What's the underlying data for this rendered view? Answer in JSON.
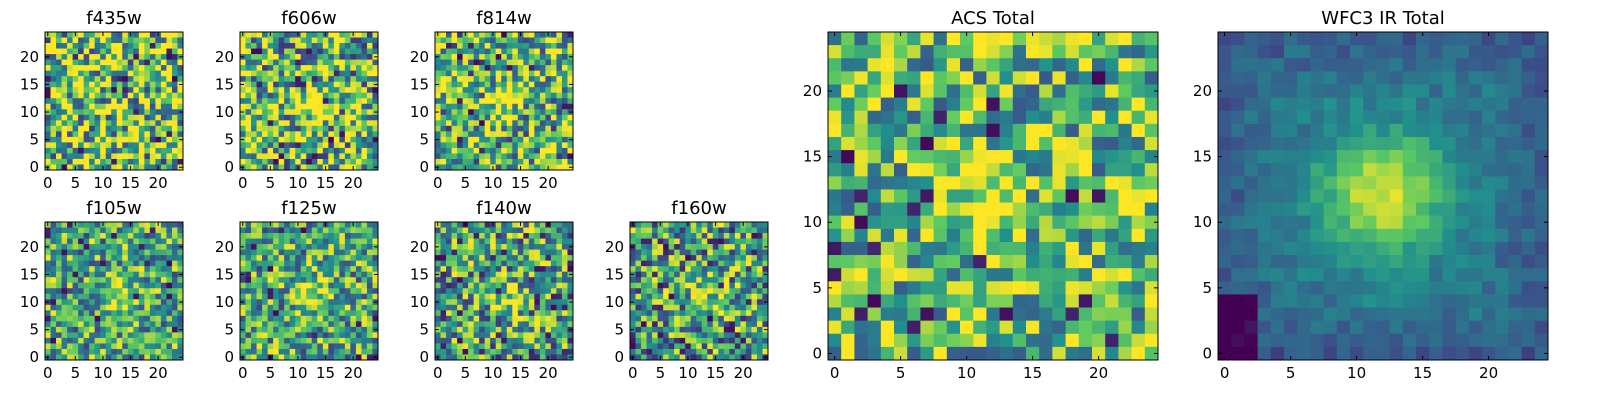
{
  "figure": {
    "colormap": "viridis",
    "colormap_stops": [
      "#440154",
      "#3b528b",
      "#21908d",
      "#5dc962",
      "#fde725"
    ]
  },
  "chart_data": [
    {
      "type": "heatmap",
      "title": "f435w",
      "grid": "25x25",
      "xlim": [
        0,
        24
      ],
      "ylim": [
        0,
        24
      ],
      "xticks": [
        "0",
        "5",
        "10",
        "15",
        "20"
      ],
      "yticks": [
        "0",
        "5",
        "10",
        "15",
        "20"
      ],
      "source_peak": null,
      "noise": 0.55,
      "baseline": 0.72
    },
    {
      "type": "heatmap",
      "title": "f606w",
      "grid": "25x25",
      "xlim": [
        0,
        24
      ],
      "ylim": [
        0,
        24
      ],
      "xticks": [
        "0",
        "5",
        "10",
        "15",
        "20"
      ],
      "yticks": [
        "0",
        "5",
        "10",
        "15",
        "20"
      ],
      "source_peak": [
        13,
        11
      ],
      "noise": 0.5,
      "baseline": 0.66
    },
    {
      "type": "heatmap",
      "title": "f814w",
      "grid": "25x25",
      "xlim": [
        0,
        24
      ],
      "ylim": [
        0,
        24
      ],
      "xticks": [
        "0",
        "5",
        "10",
        "15",
        "20"
      ],
      "yticks": [
        "0",
        "5",
        "10",
        "15",
        "20"
      ],
      "source_peak": [
        12,
        11
      ],
      "noise": 0.5,
      "baseline": 0.66
    },
    {
      "type": "heatmap",
      "title": "f105w",
      "grid": "25x25",
      "xlim": [
        0,
        24
      ],
      "ylim": [
        0,
        24
      ],
      "xticks": [
        "0",
        "5",
        "10",
        "15",
        "20"
      ],
      "yticks": [
        "0",
        "5",
        "10",
        "15",
        "20"
      ],
      "source_peak": [
        13,
        10
      ],
      "noise": 0.4,
      "baseline": 0.6
    },
    {
      "type": "heatmap",
      "title": "f125w",
      "grid": "25x25",
      "xlim": [
        0,
        24
      ],
      "ylim": [
        0,
        24
      ],
      "xticks": [
        "0",
        "5",
        "10",
        "15",
        "20"
      ],
      "yticks": [
        "0",
        "5",
        "10",
        "15",
        "20"
      ],
      "source_peak": [
        13,
        12
      ],
      "noise": 0.4,
      "baseline": 0.6
    },
    {
      "type": "heatmap",
      "title": "f140w",
      "grid": "25x25",
      "xlim": [
        0,
        24
      ],
      "ylim": [
        0,
        24
      ],
      "xticks": [
        "0",
        "5",
        "10",
        "15",
        "20"
      ],
      "yticks": [
        "0",
        "5",
        "10",
        "15",
        "20"
      ],
      "source_peak": [
        12,
        11
      ],
      "noise": 0.45,
      "baseline": 0.55
    },
    {
      "type": "heatmap",
      "title": "f160w",
      "grid": "25x25",
      "xlim": [
        0,
        24
      ],
      "ylim": [
        0,
        24
      ],
      "xticks": [
        "0",
        "5",
        "10",
        "15",
        "20"
      ],
      "yticks": [
        "0",
        "5",
        "10",
        "15",
        "20"
      ],
      "source_peak": [
        13,
        11
      ],
      "noise": 0.45,
      "baseline": 0.55
    },
    {
      "type": "heatmap",
      "title": "ACS Total",
      "grid": "25x25",
      "xlim": [
        0,
        24
      ],
      "ylim": [
        0,
        24
      ],
      "xticks": [
        "0",
        "5",
        "10",
        "15",
        "20"
      ],
      "yticks": [
        "0",
        "5",
        "10",
        "15",
        "20"
      ],
      "source_peak": [
        11,
        11
      ],
      "noise": 0.4,
      "baseline": 0.68
    },
    {
      "type": "heatmap",
      "title": "WFC3 IR Total",
      "grid": "25x25",
      "xlim": [
        0,
        24
      ],
      "ylim": [
        0,
        24
      ],
      "xticks": [
        "0",
        "5",
        "10",
        "15",
        "20"
      ],
      "yticks": [
        "0",
        "5",
        "10",
        "15",
        "20"
      ],
      "source_peak": [
        12,
        12
      ],
      "noise": 0.08,
      "baseline": 0.4
    }
  ]
}
